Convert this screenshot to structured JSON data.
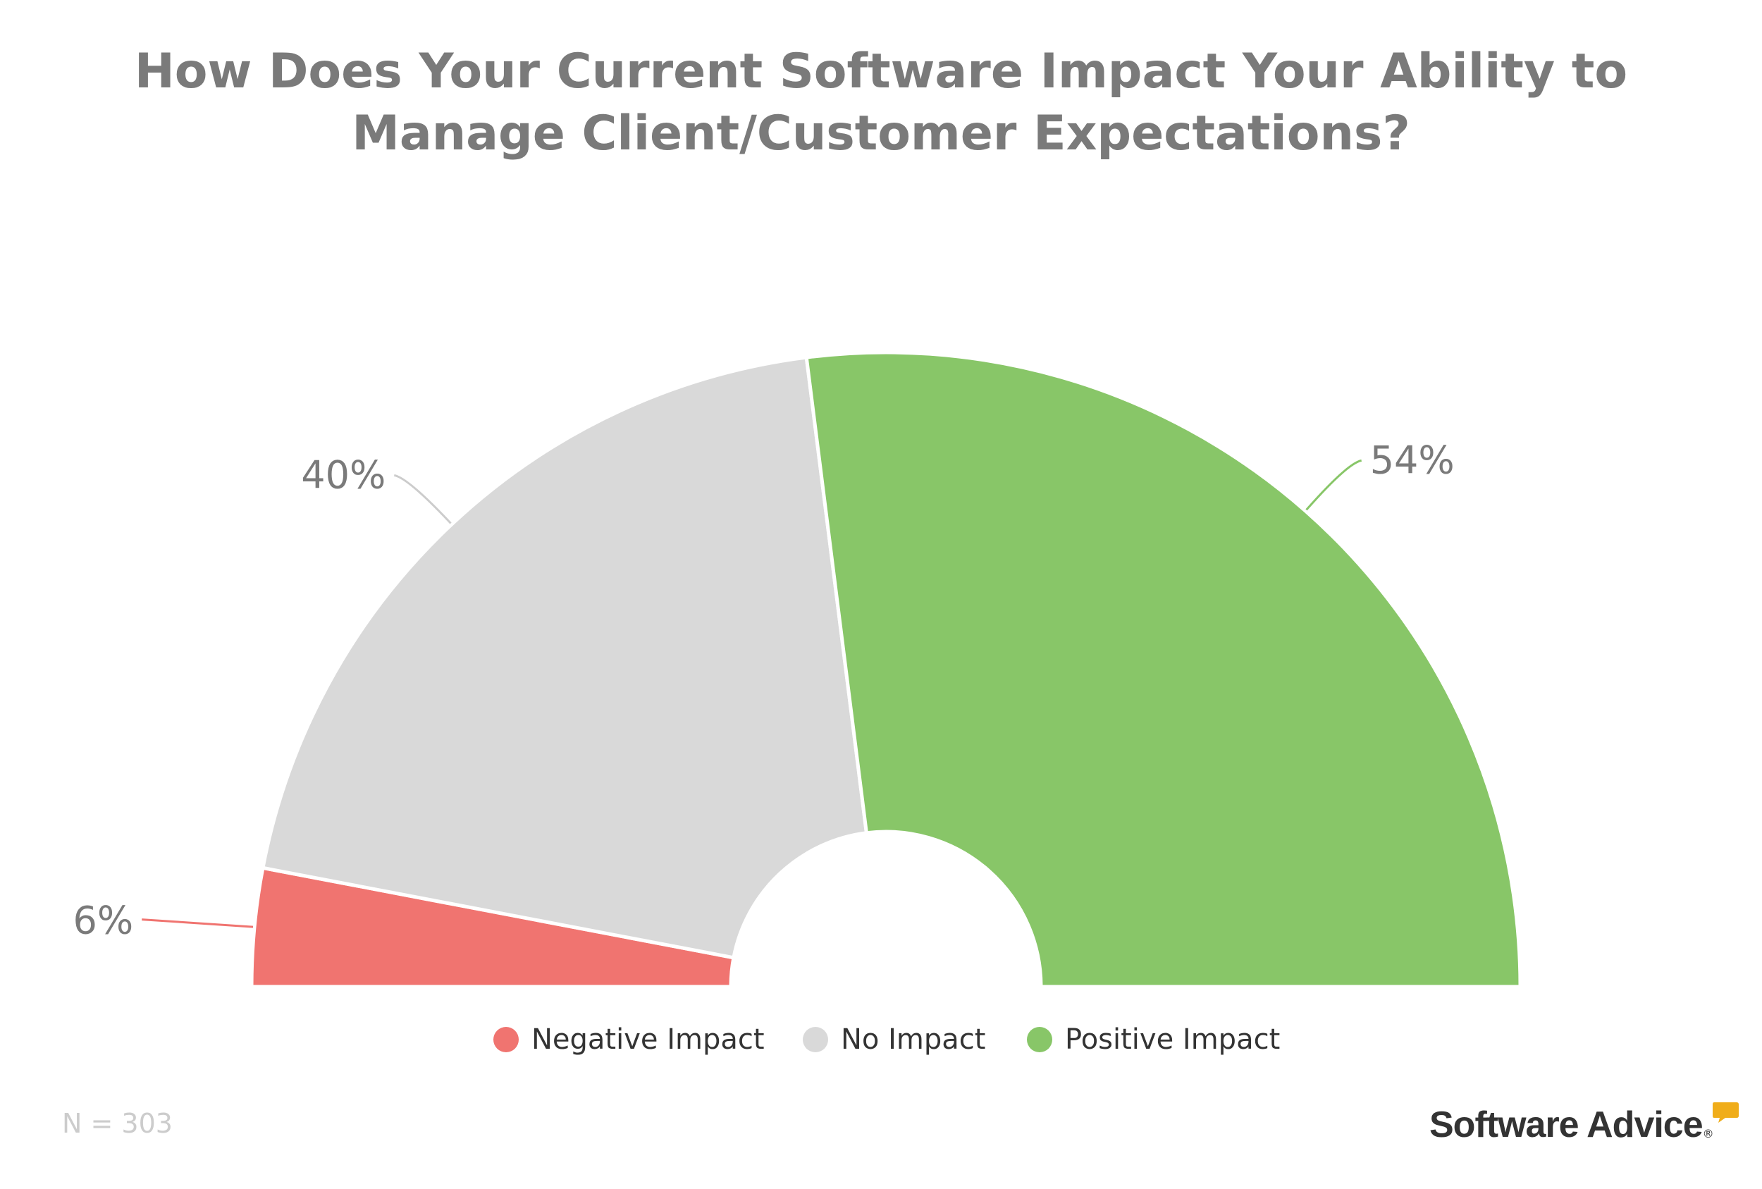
{
  "title": {
    "line1": "How Does Your Current Software Impact Your Ability to",
    "line2": "Manage Client/Customer Expectations?"
  },
  "chart_data": {
    "type": "pie",
    "variant": "semi-donut",
    "title": "How Does Your Current Software Impact Your Ability to Manage Client/Customer Expectations?",
    "categories": [
      "Negative Impact",
      "No Impact",
      "Positive Impact"
    ],
    "values": [
      6,
      40,
      54
    ],
    "data_labels": [
      "6%",
      "40%",
      "54%"
    ],
    "colors": [
      "#f07470",
      "#d9d9d9",
      "#88c668"
    ],
    "legend_position": "bottom"
  },
  "legend": [
    {
      "label": "Negative Impact",
      "color": "#f07470"
    },
    {
      "label": "No Impact",
      "color": "#d9d9d9"
    },
    {
      "label": "Positive Impact",
      "color": "#88c668"
    }
  ],
  "footnote": "N = 303",
  "logo": {
    "text": "Software Advice",
    "mark": "®",
    "accent": "#f0ad1a"
  }
}
